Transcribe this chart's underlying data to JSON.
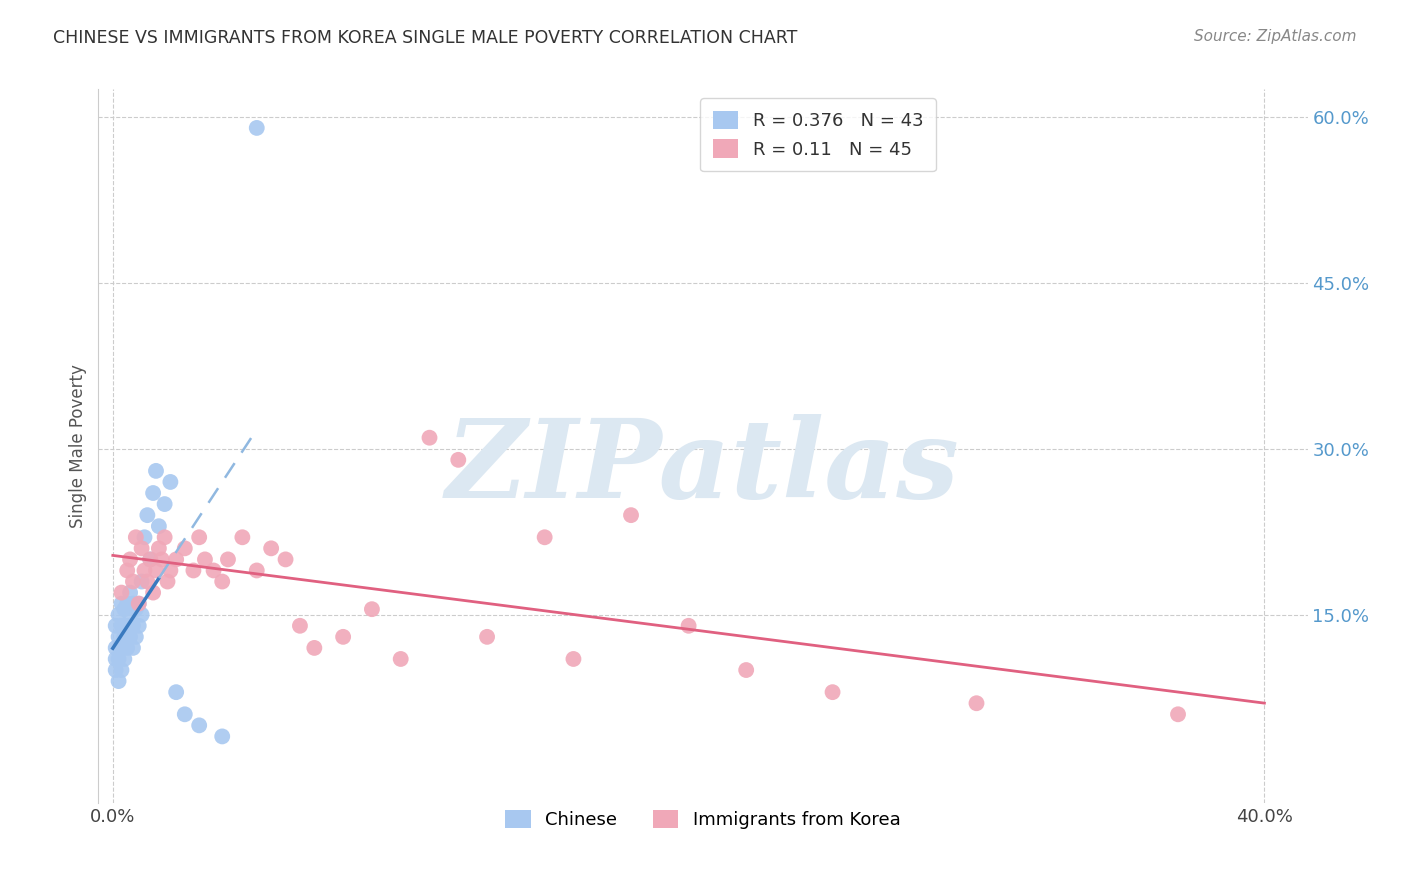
{
  "title": "CHINESE VS IMMIGRANTS FROM KOREA SINGLE MALE POVERTY CORRELATION CHART",
  "source": "Source: ZipAtlas.com",
  "xlabel_chinese": "Chinese",
  "xlabel_korea": "Immigrants from Korea",
  "ylabel": "Single Male Poverty",
  "r_chinese": 0.376,
  "n_chinese": 43,
  "r_korea": 0.11,
  "n_korea": 45,
  "xlim": [
    -0.005,
    0.415
  ],
  "ylim": [
    -0.02,
    0.625
  ],
  "color_chinese_dot": "#a8c8f0",
  "color_korea_dot": "#f0a8b8",
  "color_chinese_line_solid": "#3a7abf",
  "color_chinese_line_dashed": "#90b8e0",
  "color_korea_line": "#e06080",
  "color_grid": "#cccccc",
  "color_tick_right": "#5599cc",
  "background_color": "#ffffff",
  "watermark_color": "#dce8f2",
  "cn_x": [
    0.001,
    0.001,
    0.001,
    0.001,
    0.002,
    0.002,
    0.002,
    0.002,
    0.003,
    0.003,
    0.003,
    0.003,
    0.004,
    0.004,
    0.004,
    0.005,
    0.005,
    0.005,
    0.006,
    0.006,
    0.006,
    0.007,
    0.007,
    0.007,
    0.008,
    0.008,
    0.009,
    0.009,
    0.01,
    0.01,
    0.011,
    0.012,
    0.013,
    0.014,
    0.015,
    0.016,
    0.018,
    0.02,
    0.022,
    0.025,
    0.03,
    0.038,
    0.05
  ],
  "cn_y": [
    0.14,
    0.12,
    0.11,
    0.1,
    0.15,
    0.13,
    0.11,
    0.09,
    0.16,
    0.14,
    0.12,
    0.1,
    0.155,
    0.13,
    0.11,
    0.16,
    0.14,
    0.12,
    0.17,
    0.15,
    0.13,
    0.16,
    0.14,
    0.12,
    0.155,
    0.13,
    0.16,
    0.14,
    0.18,
    0.15,
    0.22,
    0.24,
    0.2,
    0.26,
    0.28,
    0.23,
    0.25,
    0.27,
    0.08,
    0.06,
    0.05,
    0.04,
    0.59
  ],
  "kr_x": [
    0.003,
    0.005,
    0.006,
    0.007,
    0.008,
    0.009,
    0.01,
    0.011,
    0.012,
    0.013,
    0.014,
    0.015,
    0.016,
    0.017,
    0.018,
    0.019,
    0.02,
    0.022,
    0.025,
    0.028,
    0.03,
    0.032,
    0.035,
    0.038,
    0.04,
    0.045,
    0.05,
    0.055,
    0.06,
    0.065,
    0.07,
    0.08,
    0.09,
    0.1,
    0.11,
    0.12,
    0.13,
    0.15,
    0.16,
    0.18,
    0.2,
    0.22,
    0.25,
    0.3,
    0.37
  ],
  "kr_y": [
    0.17,
    0.19,
    0.2,
    0.18,
    0.22,
    0.16,
    0.21,
    0.19,
    0.18,
    0.2,
    0.17,
    0.19,
    0.21,
    0.2,
    0.22,
    0.18,
    0.19,
    0.2,
    0.21,
    0.19,
    0.22,
    0.2,
    0.19,
    0.18,
    0.2,
    0.22,
    0.19,
    0.21,
    0.2,
    0.14,
    0.12,
    0.13,
    0.155,
    0.11,
    0.31,
    0.29,
    0.13,
    0.22,
    0.11,
    0.24,
    0.14,
    0.1,
    0.08,
    0.07,
    0.06
  ]
}
